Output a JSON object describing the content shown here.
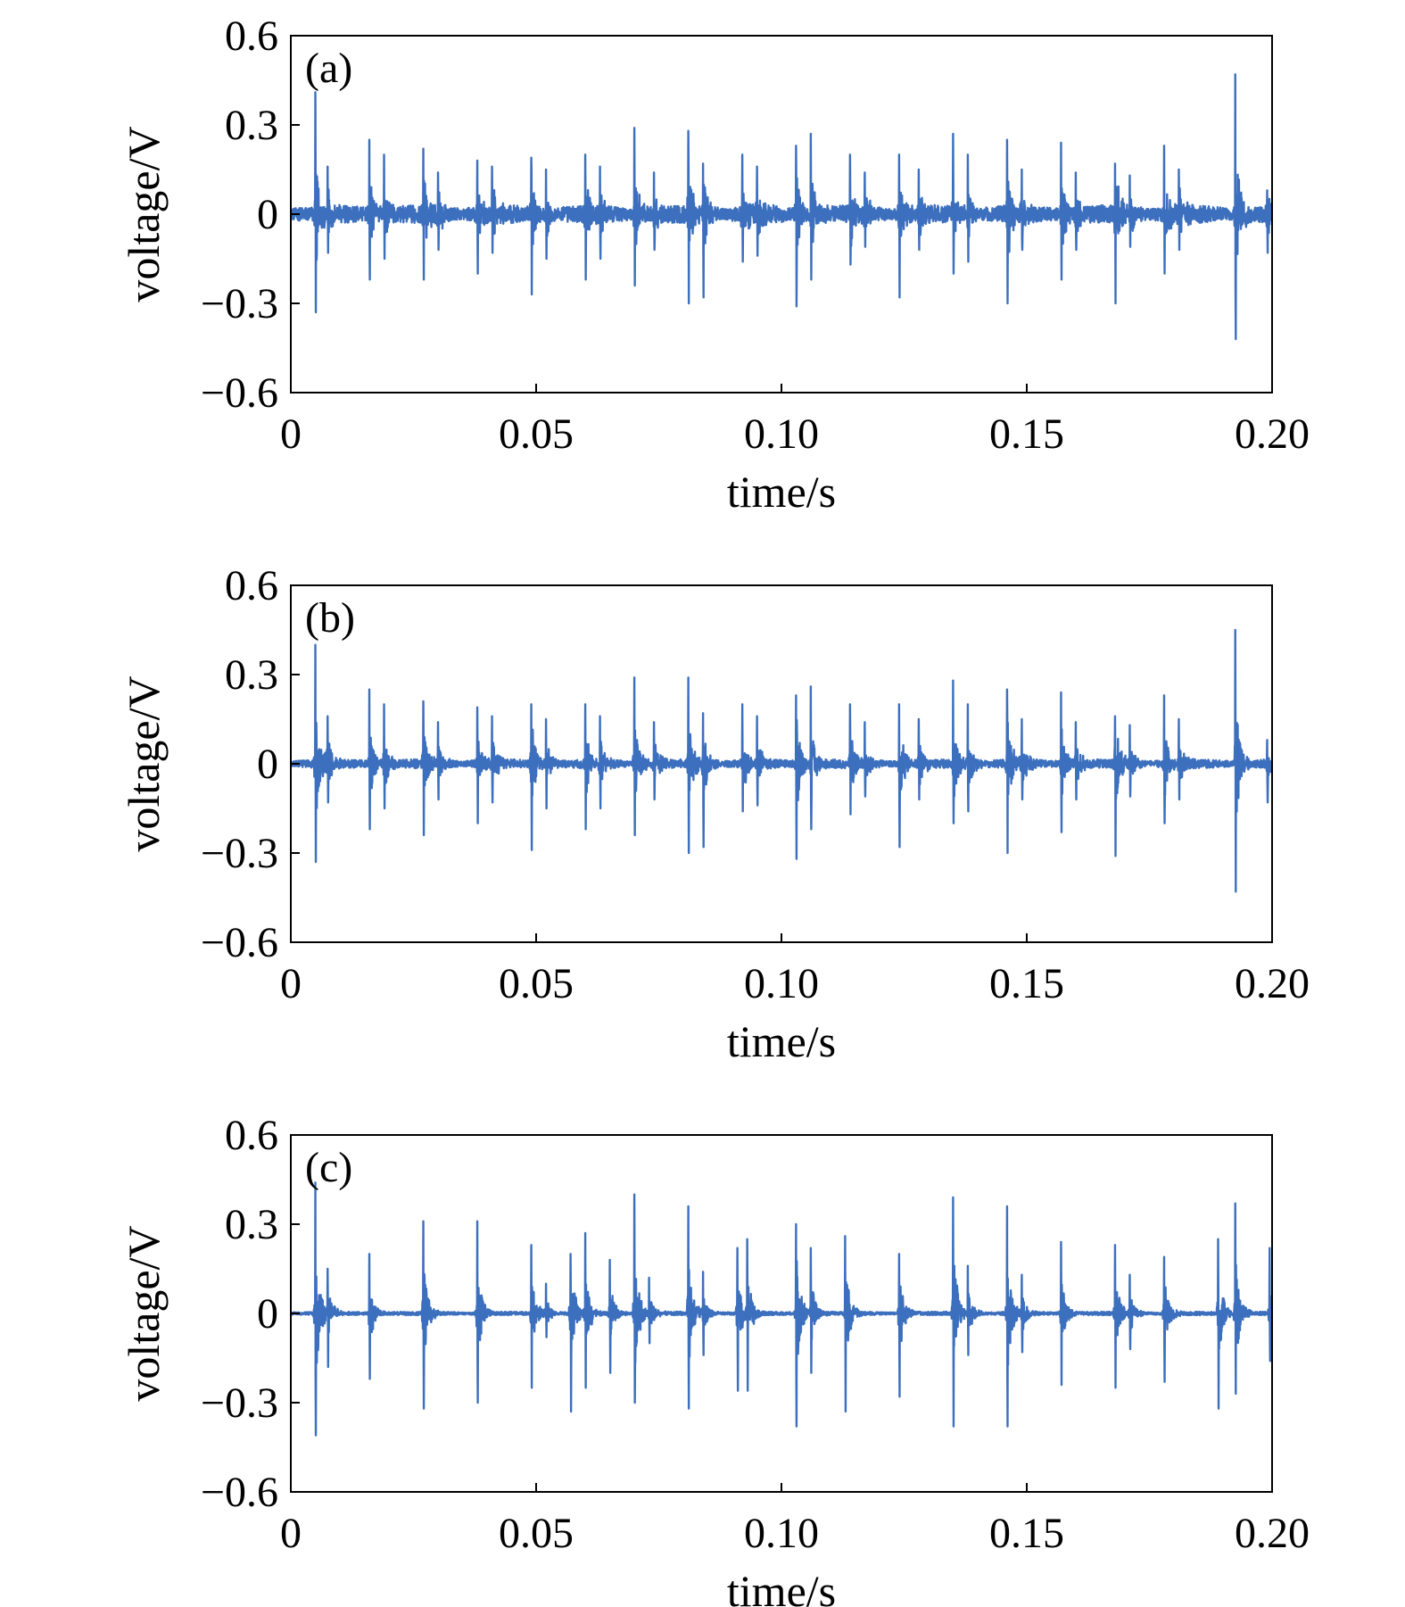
{
  "chart_data": [
    {
      "type": "line",
      "panel_label": "(a)",
      "xlabel": "time/s",
      "ylabel": "voltage/V",
      "xlim": [
        0,
        0.2
      ],
      "ylim": [
        -0.6,
        0.6
      ],
      "xticks": [
        0,
        0.05,
        0.1,
        0.15,
        0.2
      ],
      "xtick_labels": [
        "0",
        "0.05",
        "0.10",
        "0.15",
        "0.20"
      ],
      "yticks": [
        0.6,
        0.3,
        0,
        -0.3,
        -0.6
      ],
      "ytick_labels": [
        "0.6",
        "0.3",
        "0",
        "−0.3",
        "−0.6"
      ],
      "color": "#3c6fbd",
      "noise_amplitude": 0.03,
      "bursts": [
        {
          "t": 0.005,
          "max": 0.41,
          "min": -0.33
        },
        {
          "t": 0.0075,
          "max": 0.16,
          "min": -0.13
        },
        {
          "t": 0.016,
          "max": 0.25,
          "min": -0.22
        },
        {
          "t": 0.019,
          "max": 0.2,
          "min": -0.15
        },
        {
          "t": 0.027,
          "max": 0.22,
          "min": -0.22
        },
        {
          "t": 0.03,
          "max": 0.14,
          "min": -0.12
        },
        {
          "t": 0.038,
          "max": 0.18,
          "min": -0.2
        },
        {
          "t": 0.041,
          "max": 0.16,
          "min": -0.13
        },
        {
          "t": 0.049,
          "max": 0.19,
          "min": -0.27
        },
        {
          "t": 0.052,
          "max": 0.15,
          "min": -0.15
        },
        {
          "t": 0.06,
          "max": 0.2,
          "min": -0.22
        },
        {
          "t": 0.063,
          "max": 0.16,
          "min": -0.15
        },
        {
          "t": 0.07,
          "max": 0.29,
          "min": -0.24
        },
        {
          "t": 0.074,
          "max": 0.14,
          "min": -0.12
        },
        {
          "t": 0.081,
          "max": 0.28,
          "min": -0.3
        },
        {
          "t": 0.084,
          "max": 0.17,
          "min": -0.28
        },
        {
          "t": 0.092,
          "max": 0.2,
          "min": -0.16
        },
        {
          "t": 0.095,
          "max": 0.16,
          "min": -0.14
        },
        {
          "t": 0.103,
          "max": 0.23,
          "min": -0.31
        },
        {
          "t": 0.106,
          "max": 0.27,
          "min": -0.22
        },
        {
          "t": 0.114,
          "max": 0.2,
          "min": -0.17
        },
        {
          "t": 0.117,
          "max": 0.14,
          "min": -0.11
        },
        {
          "t": 0.124,
          "max": 0.2,
          "min": -0.28
        },
        {
          "t": 0.128,
          "max": 0.15,
          "min": -0.12
        },
        {
          "t": 0.135,
          "max": 0.27,
          "min": -0.2
        },
        {
          "t": 0.138,
          "max": 0.2,
          "min": -0.16
        },
        {
          "t": 0.146,
          "max": 0.25,
          "min": -0.3
        },
        {
          "t": 0.149,
          "max": 0.15,
          "min": -0.12
        },
        {
          "t": 0.157,
          "max": 0.24,
          "min": -0.22
        },
        {
          "t": 0.16,
          "max": 0.14,
          "min": -0.12
        },
        {
          "t": 0.168,
          "max": 0.17,
          "min": -0.3
        },
        {
          "t": 0.171,
          "max": 0.13,
          "min": -0.11
        },
        {
          "t": 0.178,
          "max": 0.23,
          "min": -0.2
        },
        {
          "t": 0.181,
          "max": 0.15,
          "min": -0.12
        },
        {
          "t": 0.1925,
          "max": 0.47,
          "min": -0.42
        },
        {
          "t": 0.199,
          "max": 0.08,
          "min": -0.13
        }
      ]
    },
    {
      "type": "line",
      "panel_label": "(b)",
      "xlabel": "time/s",
      "ylabel": "voltage/V",
      "xlim": [
        0,
        0.2
      ],
      "ylim": [
        -0.6,
        0.6
      ],
      "xticks": [
        0,
        0.05,
        0.1,
        0.15,
        0.2
      ],
      "xtick_labels": [
        "0",
        "0.05",
        "0.10",
        "0.15",
        "0.20"
      ],
      "yticks": [
        0.6,
        0.3,
        0,
        -0.3,
        -0.6
      ],
      "ytick_labels": [
        "0.6",
        "0.3",
        "0",
        "−0.3",
        "−0.6"
      ],
      "color": "#3c6fbd",
      "noise_amplitude": 0.015,
      "bursts": [
        {
          "t": 0.005,
          "max": 0.4,
          "min": -0.33
        },
        {
          "t": 0.0075,
          "max": 0.16,
          "min": -0.13
        },
        {
          "t": 0.016,
          "max": 0.25,
          "min": -0.22
        },
        {
          "t": 0.019,
          "max": 0.2,
          "min": -0.15
        },
        {
          "t": 0.027,
          "max": 0.21,
          "min": -0.24
        },
        {
          "t": 0.03,
          "max": 0.14,
          "min": -0.12
        },
        {
          "t": 0.038,
          "max": 0.19,
          "min": -0.2
        },
        {
          "t": 0.041,
          "max": 0.16,
          "min": -0.13
        },
        {
          "t": 0.049,
          "max": 0.2,
          "min": -0.29
        },
        {
          "t": 0.052,
          "max": 0.15,
          "min": -0.15
        },
        {
          "t": 0.06,
          "max": 0.2,
          "min": -0.22
        },
        {
          "t": 0.063,
          "max": 0.16,
          "min": -0.15
        },
        {
          "t": 0.07,
          "max": 0.29,
          "min": -0.24
        },
        {
          "t": 0.074,
          "max": 0.14,
          "min": -0.12
        },
        {
          "t": 0.081,
          "max": 0.29,
          "min": -0.3
        },
        {
          "t": 0.084,
          "max": 0.17,
          "min": -0.28
        },
        {
          "t": 0.092,
          "max": 0.2,
          "min": -0.16
        },
        {
          "t": 0.095,
          "max": 0.16,
          "min": -0.14
        },
        {
          "t": 0.103,
          "max": 0.23,
          "min": -0.32
        },
        {
          "t": 0.106,
          "max": 0.26,
          "min": -0.22
        },
        {
          "t": 0.114,
          "max": 0.2,
          "min": -0.17
        },
        {
          "t": 0.117,
          "max": 0.14,
          "min": -0.11
        },
        {
          "t": 0.124,
          "max": 0.2,
          "min": -0.28
        },
        {
          "t": 0.128,
          "max": 0.15,
          "min": -0.12
        },
        {
          "t": 0.135,
          "max": 0.28,
          "min": -0.2
        },
        {
          "t": 0.138,
          "max": 0.2,
          "min": -0.16
        },
        {
          "t": 0.146,
          "max": 0.25,
          "min": -0.3
        },
        {
          "t": 0.149,
          "max": 0.15,
          "min": -0.12
        },
        {
          "t": 0.157,
          "max": 0.24,
          "min": -0.23
        },
        {
          "t": 0.16,
          "max": 0.14,
          "min": -0.12
        },
        {
          "t": 0.168,
          "max": 0.16,
          "min": -0.31
        },
        {
          "t": 0.171,
          "max": 0.13,
          "min": -0.11
        },
        {
          "t": 0.178,
          "max": 0.23,
          "min": -0.2
        },
        {
          "t": 0.181,
          "max": 0.15,
          "min": -0.12
        },
        {
          "t": 0.1925,
          "max": 0.45,
          "min": -0.43
        },
        {
          "t": 0.199,
          "max": 0.08,
          "min": -0.13
        }
      ]
    },
    {
      "type": "line",
      "panel_label": "(c)",
      "xlabel": "time/s",
      "ylabel": "voltage/V",
      "xlim": [
        0,
        0.2
      ],
      "ylim": [
        -0.6,
        0.6
      ],
      "xticks": [
        0,
        0.05,
        0.1,
        0.15,
        0.2
      ],
      "xtick_labels": [
        "0",
        "0.05",
        "0.10",
        "0.15",
        "0.20"
      ],
      "yticks": [
        0.6,
        0.3,
        0,
        -0.3,
        -0.6
      ],
      "ytick_labels": [
        "0.6",
        "0.3",
        "0",
        "−0.3",
        "−0.6"
      ],
      "color": "#3c6fbd",
      "noise_amplitude": 0.006,
      "bursts": [
        {
          "t": 0.005,
          "max": 0.44,
          "min": -0.41
        },
        {
          "t": 0.0075,
          "max": 0.15,
          "min": -0.18
        },
        {
          "t": 0.016,
          "max": 0.2,
          "min": -0.22
        },
        {
          "t": 0.027,
          "max": 0.31,
          "min": -0.32
        },
        {
          "t": 0.038,
          "max": 0.31,
          "min": -0.3
        },
        {
          "t": 0.049,
          "max": 0.23,
          "min": -0.25
        },
        {
          "t": 0.052,
          "max": 0.1,
          "min": -0.08
        },
        {
          "t": 0.057,
          "max": 0.2,
          "min": -0.33
        },
        {
          "t": 0.06,
          "max": 0.27,
          "min": -0.25
        },
        {
          "t": 0.065,
          "max": 0.18,
          "min": -0.2
        },
        {
          "t": 0.07,
          "max": 0.4,
          "min": -0.3
        },
        {
          "t": 0.073,
          "max": 0.12,
          "min": -0.1
        },
        {
          "t": 0.081,
          "max": 0.36,
          "min": -0.32
        },
        {
          "t": 0.084,
          "max": 0.14,
          "min": -0.14
        },
        {
          "t": 0.091,
          "max": 0.22,
          "min": -0.26
        },
        {
          "t": 0.093,
          "max": 0.25,
          "min": -0.26
        },
        {
          "t": 0.103,
          "max": 0.3,
          "min": -0.38
        },
        {
          "t": 0.106,
          "max": 0.22,
          "min": -0.2
        },
        {
          "t": 0.113,
          "max": 0.26,
          "min": -0.33
        },
        {
          "t": 0.124,
          "max": 0.2,
          "min": -0.28
        },
        {
          "t": 0.135,
          "max": 0.39,
          "min": -0.38
        },
        {
          "t": 0.138,
          "max": 0.16,
          "min": -0.14
        },
        {
          "t": 0.146,
          "max": 0.36,
          "min": -0.38
        },
        {
          "t": 0.149,
          "max": 0.13,
          "min": -0.13
        },
        {
          "t": 0.157,
          "max": 0.24,
          "min": -0.24
        },
        {
          "t": 0.168,
          "max": 0.23,
          "min": -0.25
        },
        {
          "t": 0.171,
          "max": 0.13,
          "min": -0.12
        },
        {
          "t": 0.178,
          "max": 0.19,
          "min": -0.23
        },
        {
          "t": 0.189,
          "max": 0.25,
          "min": -0.32
        },
        {
          "t": 0.1925,
          "max": 0.37,
          "min": -0.27
        },
        {
          "t": 0.1995,
          "max": 0.22,
          "min": -0.16
        }
      ]
    }
  ]
}
